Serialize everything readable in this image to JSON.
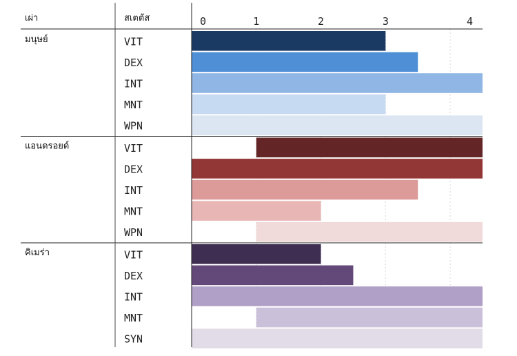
{
  "chart_data": {
    "type": "bar",
    "orientation": "horizontal",
    "headers": {
      "race": "เผ่า",
      "stat": "สเตตัส"
    },
    "x_ticks": [
      "0",
      "1",
      "2",
      "3",
      "4"
    ],
    "xlim": [
      0,
      4.5
    ],
    "groups": [
      {
        "race": "มนุษย์",
        "rows": [
          {
            "stat": "VIT",
            "start": 0,
            "end": 3.0,
            "color": "#1a3a63"
          },
          {
            "stat": "DEX",
            "start": 0,
            "end": 3.5,
            "color": "#4f8fd6"
          },
          {
            "stat": "INT",
            "start": 0,
            "end": 4.5,
            "color": "#8fb6e4"
          },
          {
            "stat": "MNT",
            "start": 0,
            "end": 3.0,
            "color": "#c6daf1"
          },
          {
            "stat": "WPN",
            "start": 0,
            "end": 4.5,
            "color": "#dce6f2"
          }
        ]
      },
      {
        "race": "แอนดรอยด์",
        "rows": [
          {
            "stat": "VIT",
            "start": 1.0,
            "end": 4.5,
            "color": "#632526"
          },
          {
            "stat": "DEX",
            "start": 0,
            "end": 4.5,
            "color": "#933636"
          },
          {
            "stat": "INT",
            "start": 0,
            "end": 3.5,
            "color": "#dc9a98"
          },
          {
            "stat": "MNT",
            "start": 0,
            "end": 2.0,
            "color": "#e8b6b5"
          },
          {
            "stat": "WPN",
            "start": 1.0,
            "end": 4.5,
            "color": "#f1dada"
          }
        ]
      },
      {
        "race": "คิเมร่า",
        "rows": [
          {
            "stat": "VIT",
            "start": 0,
            "end": 2.0,
            "color": "#3e2f52"
          },
          {
            "stat": "DEX",
            "start": 0,
            "end": 2.5,
            "color": "#634979"
          },
          {
            "stat": "INT",
            "start": 0,
            "end": 4.5,
            "color": "#b0a0c8"
          },
          {
            "stat": "MNT",
            "start": 1.0,
            "end": 4.5,
            "color": "#cbc0da"
          },
          {
            "stat": "SYN",
            "start": 0,
            "end": 4.5,
            "color": "#e2dce8"
          }
        ]
      }
    ]
  }
}
